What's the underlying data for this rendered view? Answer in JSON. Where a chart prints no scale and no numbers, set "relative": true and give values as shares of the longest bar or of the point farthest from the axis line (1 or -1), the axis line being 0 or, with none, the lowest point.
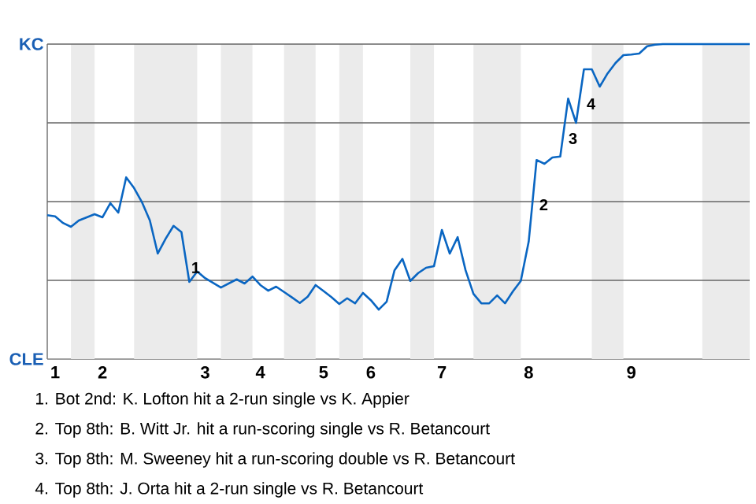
{
  "chart_data": {
    "type": "line",
    "relative": true,
    "categories": [
      null,
      "1",
      null,
      null,
      null,
      null,
      null,
      "2",
      null,
      null,
      null,
      null,
      null,
      null,
      null,
      null,
      null,
      null,
      null,
      null,
      "3",
      null,
      null,
      null,
      null,
      null,
      null,
      "4",
      null,
      null,
      null,
      null,
      null,
      null,
      null,
      "5",
      null,
      null,
      null,
      null,
      null,
      "6",
      null,
      null,
      null,
      null,
      null,
      null,
      null,
      null,
      "7",
      null,
      null,
      null,
      null,
      null,
      null,
      null,
      null,
      null,
      null,
      "8",
      null,
      null,
      null,
      null,
      null,
      null,
      null,
      null,
      null,
      null,
      null,
      null,
      "9",
      null,
      null,
      null,
      null,
      null,
      null,
      null,
      null,
      null,
      null,
      null,
      null,
      null,
      null,
      null
    ],
    "series": [
      {
        "color": "#0a66c2",
        "values": [
          0.457,
          0.453,
          0.432,
          0.42,
          0.44,
          0.45,
          0.46,
          0.45,
          0.495,
          0.465,
          0.577,
          0.543,
          0.498,
          0.44,
          0.335,
          0.382,
          0.423,
          0.403,
          0.245,
          0.278,
          0.257,
          0.242,
          0.227,
          0.24,
          0.253,
          0.24,
          0.262,
          0.235,
          0.217,
          0.23,
          0.213,
          0.196,
          0.178,
          0.198,
          0.235,
          0.216,
          0.197,
          0.175,
          0.193,
          0.177,
          0.21,
          0.187,
          0.157,
          0.182,
          0.282,
          0.318,
          0.248,
          0.273,
          0.29,
          0.295,
          0.41,
          0.335,
          0.387,
          0.282,
          0.207,
          0.177,
          0.177,
          0.202,
          0.177,
          0.215,
          0.248,
          0.373,
          0.632,
          0.62,
          0.64,
          0.643,
          0.827,
          0.75,
          0.92,
          0.92,
          0.865,
          0.907,
          0.94,
          0.965,
          0.967,
          0.97,
          0.993,
          0.998,
          1,
          1,
          1,
          1,
          1,
          1,
          1,
          1,
          1,
          1,
          1,
          1
        ],
        "name": null
      }
    ],
    "grid": "y",
    "annotations": [
      "KC",
      "CLE",
      "1",
      "2",
      "3",
      "4",
      "1. Bot 2nd: K. Lofton hit a 2-run single vs K. Appier",
      "2. Top 8th: B. Witt Jr. hit a run-scoring single vs R. Betancourt",
      "3. Top 8th: M. Sweeney hit a run-scoring double vs R. Betancourt",
      "4. Top 8th: J. Orta hit a 2-run single vs R. Betancourt"
    ]
  }
}
